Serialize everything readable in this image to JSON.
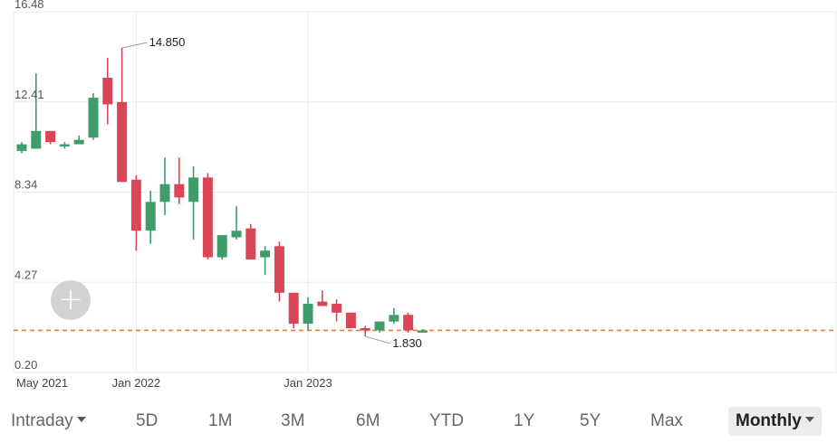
{
  "chart_data": {
    "type": "candlestick",
    "y_ticks": [
      "16.48",
      "12.41",
      "8.34",
      "4.27",
      "0.20"
    ],
    "ylim": [
      0.2,
      16.48
    ],
    "x_labels": [
      {
        "index": 0,
        "label": "May 2021"
      },
      {
        "index": 8,
        "label": "Jan 2022"
      },
      {
        "index": 20,
        "label": "Jan 2023"
      }
    ],
    "candles": [
      {
        "o": 10.2,
        "h": 10.6,
        "l": 10.1,
        "c": 10.5
      },
      {
        "o": 10.3,
        "h": 13.7,
        "l": 10.3,
        "c": 11.1
      },
      {
        "o": 11.1,
        "h": 11.1,
        "l": 10.5,
        "c": 10.6
      },
      {
        "o": 10.4,
        "h": 10.6,
        "l": 10.3,
        "c": 10.5
      },
      {
        "o": 10.5,
        "h": 10.9,
        "l": 10.5,
        "c": 10.7
      },
      {
        "o": 10.8,
        "h": 12.8,
        "l": 10.7,
        "c": 12.6
      },
      {
        "o": 13.5,
        "h": 14.4,
        "l": 11.4,
        "c": 12.3
      },
      {
        "o": 12.4,
        "h": 14.85,
        "l": 8.8,
        "c": 8.8
      },
      {
        "o": 8.9,
        "h": 9.1,
        "l": 5.7,
        "c": 6.6
      },
      {
        "o": 6.6,
        "h": 8.4,
        "l": 6.0,
        "c": 7.9
      },
      {
        "o": 7.9,
        "h": 9.9,
        "l": 7.3,
        "c": 8.7
      },
      {
        "o": 8.7,
        "h": 9.9,
        "l": 7.8,
        "c": 8.1
      },
      {
        "o": 7.9,
        "h": 9.5,
        "l": 6.2,
        "c": 9.0
      },
      {
        "o": 9.0,
        "h": 9.2,
        "l": 5.3,
        "c": 5.4
      },
      {
        "o": 5.4,
        "h": 6.4,
        "l": 5.3,
        "c": 6.4
      },
      {
        "o": 6.3,
        "h": 7.7,
        "l": 6.2,
        "c": 6.6
      },
      {
        "o": 6.7,
        "h": 6.9,
        "l": 5.3,
        "c": 5.3
      },
      {
        "o": 5.4,
        "h": 5.9,
        "l": 4.6,
        "c": 5.7
      },
      {
        "o": 5.9,
        "h": 6.1,
        "l": 3.4,
        "c": 3.8
      },
      {
        "o": 3.8,
        "h": 3.8,
        "l": 2.2,
        "c": 2.4
      },
      {
        "o": 2.4,
        "h": 3.6,
        "l": 2.1,
        "c": 3.3
      },
      {
        "o": 3.4,
        "h": 3.9,
        "l": 3.2,
        "c": 3.2
      },
      {
        "o": 3.3,
        "h": 3.5,
        "l": 2.5,
        "c": 2.9
      },
      {
        "o": 2.9,
        "h": 2.9,
        "l": 2.2,
        "c": 2.2
      },
      {
        "o": 2.2,
        "h": 2.3,
        "l": 1.83,
        "c": 2.1
      },
      {
        "o": 2.1,
        "h": 2.5,
        "l": 2.0,
        "c": 2.5
      },
      {
        "o": 2.5,
        "h": 3.1,
        "l": 2.4,
        "c": 2.8
      },
      {
        "o": 2.8,
        "h": 2.9,
        "l": 2.0,
        "c": 2.1
      },
      {
        "o": 2.0,
        "h": 2.15,
        "l": 2.0,
        "c": 2.1
      }
    ],
    "reference_line": 2.1,
    "annotations": [
      {
        "index": 7,
        "value": 14.85,
        "label": "14.850"
      },
      {
        "index": 24,
        "value": 1.83,
        "label": "1.830"
      }
    ],
    "colors": {
      "up": "#3f9d6b",
      "down": "#da4655",
      "reference": "#e0813a",
      "grid": "#ebebeb"
    }
  },
  "add_button": {
    "icon": "plus-icon"
  },
  "toolbar": {
    "items": [
      {
        "label": "Intraday",
        "dropdown": true
      },
      {
        "label": "5D"
      },
      {
        "label": "1M"
      },
      {
        "label": "3M"
      },
      {
        "label": "6M"
      },
      {
        "label": "YTD"
      },
      {
        "label": "1Y"
      },
      {
        "label": "5Y"
      },
      {
        "label": "Max"
      },
      {
        "label": "Monthly",
        "dropdown": true,
        "active": true
      }
    ]
  }
}
